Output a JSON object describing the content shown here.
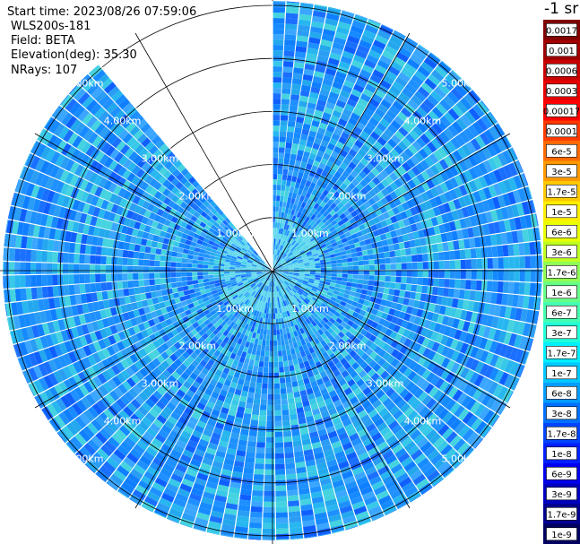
{
  "header": {
    "start_time": "Start time: 2023/08/26 07:59:06",
    "instrument": "WLS200s-181",
    "field": "Field: BETA",
    "elevation": "Elevation(deg): 35.30",
    "nrays": "NRays: 107"
  },
  "colorbar": {
    "unit_label": "-1 sr",
    "ticks": [
      "0.0017",
      "0.001",
      "0.0006",
      "0.0003",
      "0.00017",
      "0.0001",
      "6e-5",
      "3e-5",
      "1.7e-5",
      "1e-5",
      "6e-6",
      "3e-6",
      "1.7e-6",
      "1e-6",
      "6e-7",
      "3e-7",
      "1.7e-7",
      "1e-7",
      "6e-8",
      "3e-8",
      "1.7e-8",
      "1e-8",
      "6e-9",
      "3e-9",
      "1.7e-9",
      "1e-9"
    ],
    "colors": [
      "#800000",
      "#a00000",
      "#c80000",
      "#e60000",
      "#ff0000",
      "#ff3a00",
      "#ff6a00",
      "#ff9900",
      "#ffc800",
      "#ffee00",
      "#eaff00",
      "#bfff22",
      "#90ff55",
      "#66ff88",
      "#44ffb0",
      "#22ffd8",
      "#00f0ff",
      "#00c8ff",
      "#009cff",
      "#0070ff",
      "#0044ff",
      "#0020ff",
      "#0000ee",
      "#0000c0",
      "#000090",
      "#000060"
    ]
  },
  "chart_data": {
    "type": "heatmap",
    "projection": "polar-ppi",
    "range_rings_km": [
      1,
      2,
      3,
      4,
      5
    ],
    "range_labels": [
      "1.00km",
      "2.00km",
      "3.00km",
      "4.00km",
      "5.00km"
    ],
    "max_range_km": 5.0,
    "nrays": 107,
    "elevation_deg": 35.3,
    "field": "BETA",
    "missing_sector_deg": [
      320,
      360
    ],
    "dominant_value_range": [
      "1.7e-8",
      "1.7e-7"
    ]
  }
}
